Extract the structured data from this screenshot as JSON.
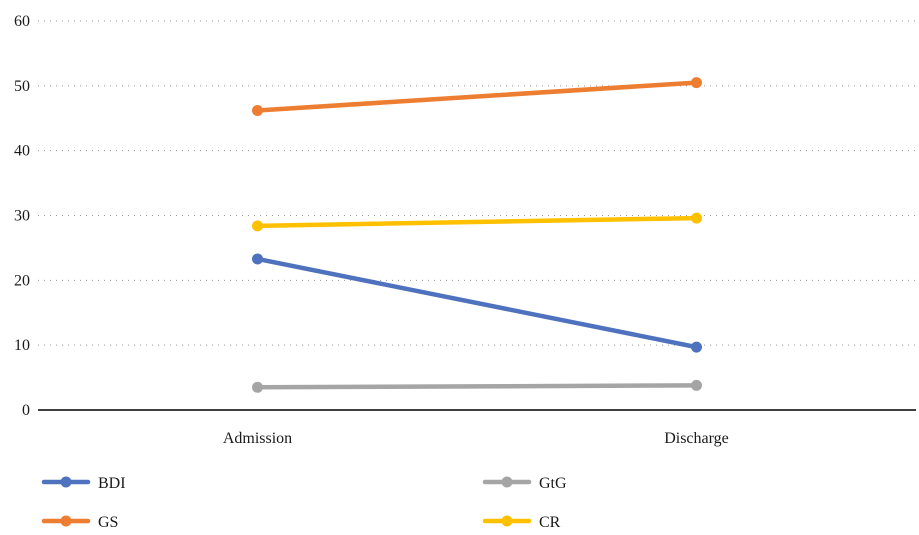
{
  "chart_data": {
    "type": "line",
    "title": "",
    "xlabel": "",
    "ylabel": "",
    "categories": [
      "Admission",
      "Discharge"
    ],
    "ylim": [
      0,
      60
    ],
    "yticks": [
      0,
      10,
      20,
      30,
      40,
      50,
      60
    ],
    "grid": true,
    "legend_position": "bottom",
    "series": [
      {
        "name": "BDI",
        "color": "#4f72be",
        "values": [
          23.3,
          9.7
        ]
      },
      {
        "name": "GS",
        "color": "#ed7d31",
        "values": [
          46.2,
          50.5
        ]
      },
      {
        "name": "GtG",
        "color": "#a5a5a5",
        "values": [
          3.5,
          3.8
        ]
      },
      {
        "name": "CR",
        "color": "#ffc000",
        "values": [
          28.4,
          29.6
        ]
      }
    ]
  }
}
